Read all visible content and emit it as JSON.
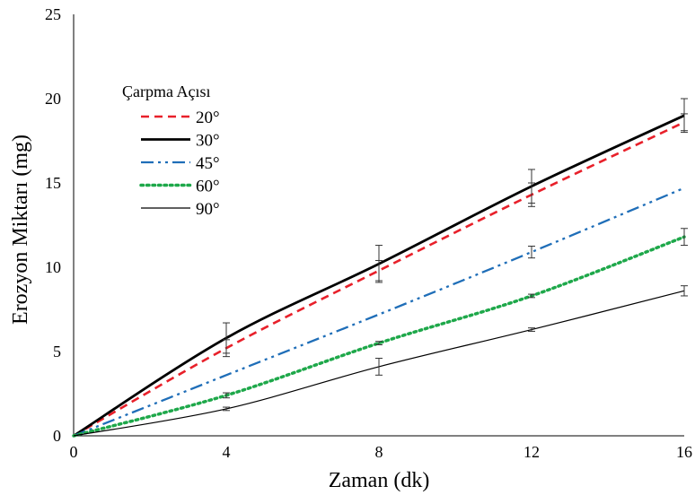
{
  "chart_data": {
    "type": "line",
    "title": "",
    "xlabel": "Zaman  (dk)",
    "ylabel": "Erozyon Miktarı  (mg)",
    "xlim": [
      0,
      16
    ],
    "ylim": [
      0,
      25
    ],
    "xticks": [
      0,
      4,
      8,
      12,
      16
    ],
    "yticks": [
      0,
      5,
      10,
      15,
      20,
      25
    ],
    "grid": false,
    "legend": {
      "title": "Çarpma Açısı",
      "position": "top-left"
    },
    "x": [
      0,
      4,
      8,
      12,
      16
    ],
    "series": [
      {
        "name": "20°",
        "values": [
          0,
          5.2,
          9.8,
          14.3,
          18.6
        ],
        "errors": [
          0,
          0.5,
          0.6,
          0.7,
          0.5
        ],
        "color": "#e8202a",
        "dash": "9,6",
        "width": 2.6
      },
      {
        "name": "30°",
        "values": [
          0,
          5.8,
          10.2,
          14.8,
          19.0
        ],
        "errors": [
          0,
          0.9,
          1.1,
          1.0,
          1.0
        ],
        "color": "#000000",
        "dash": "",
        "width": 2.8
      },
      {
        "name": "45°",
        "values": [
          0,
          3.6,
          7.2,
          10.9,
          14.7
        ],
        "errors": [
          0,
          0,
          0,
          0.35,
          0
        ],
        "color": "#1f6eb8",
        "dash": "14,5,3,5,3,5",
        "width": 2.3
      },
      {
        "name": "60°",
        "values": [
          0,
          2.4,
          5.5,
          8.3,
          11.8
        ],
        "errors": [
          0,
          0.15,
          0.1,
          0.1,
          0.5
        ],
        "color": "#1ea84a",
        "dash": "2.5,4",
        "width": 3.5
      },
      {
        "name": "90°",
        "values": [
          0,
          1.6,
          4.1,
          6.3,
          8.6
        ],
        "errors": [
          0,
          0.1,
          0.5,
          0.1,
          0.3
        ],
        "color": "#000000",
        "dash": "",
        "width": 1.2
      }
    ]
  }
}
